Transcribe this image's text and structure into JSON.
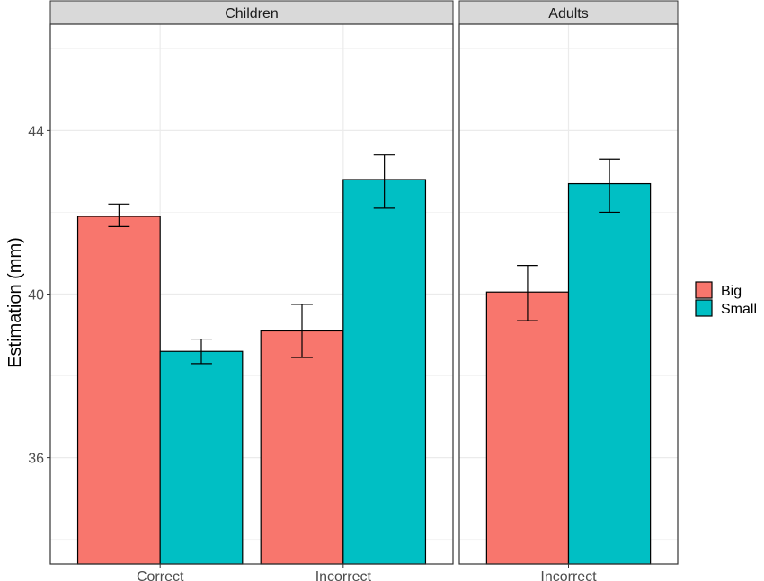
{
  "chart_data": {
    "type": "bar",
    "ylabel": "Estimation (mm)",
    "xlabel": "",
    "ylim": [
      33.4,
      46.6
    ],
    "y_ticks": [
      36,
      40,
      44
    ],
    "grid": true,
    "legend_position": "right",
    "series": [
      {
        "name": "Big",
        "color": "#F8766D"
      },
      {
        "name": "Small",
        "color": "#00BFC4"
      }
    ],
    "panels": [
      {
        "title": "Children",
        "categories": [
          "Correct",
          "Incorrect"
        ],
        "values": {
          "Big": [
            41.9,
            39.1
          ],
          "Small": [
            38.6,
            42.8
          ]
        },
        "errors": {
          "Big": [
            [
              41.65,
              42.2
            ],
            [
              38.45,
              39.75
            ]
          ],
          "Small": [
            [
              38.3,
              38.9
            ],
            [
              42.1,
              43.4
            ]
          ]
        }
      },
      {
        "title": "Adults",
        "categories": [
          "Incorrect"
        ],
        "values": {
          "Big": [
            40.05
          ],
          "Small": [
            42.7
          ]
        },
        "errors": {
          "Big": [
            [
              39.35,
              40.7
            ]
          ],
          "Small": [
            [
              42.0,
              43.3
            ]
          ]
        }
      }
    ]
  }
}
